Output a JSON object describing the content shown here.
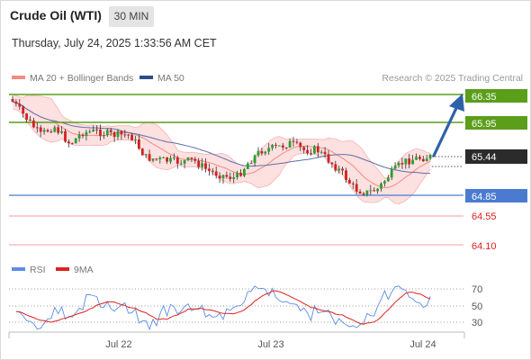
{
  "header": {
    "instrument": "Crude Oil (WTI)",
    "interval": "30 MIN",
    "timestamp": "Thursday, July 24, 2025 1:33:56 AM CET"
  },
  "legend": [
    {
      "label": "MA 20 + Bollinger Bands",
      "color": "#f28b82"
    },
    {
      "label": "MA 50",
      "color": "#2e4c8a"
    }
  ],
  "attribution": "Research © 2025 Trading Central",
  "rsi_legend": [
    {
      "label": "RSI",
      "color": "#5b8de6"
    },
    {
      "label": "9MA",
      "color": "#e02020"
    }
  ],
  "chart_data": {
    "type": "candlestick",
    "x_ticks": [
      "Jul 22",
      "Jul 23",
      "Jul 24"
    ],
    "price_ylim": [
      63.85,
      66.6
    ],
    "current_price": 65.44,
    "levels": [
      {
        "value": 66.35,
        "label": "66.35",
        "kind": "resistance",
        "color": "#5a9e1a"
      },
      {
        "value": 65.95,
        "label": "65.95",
        "kind": "resistance",
        "color": "#5a9e1a"
      },
      {
        "value": 64.85,
        "label": "64.85",
        "kind": "pivot",
        "color": "#4a7bd0"
      },
      {
        "value": 64.55,
        "label": "64.55",
        "kind": "support",
        "color": "#e86b6b"
      },
      {
        "value": 64.1,
        "label": "64.10",
        "kind": "support",
        "color": "#e86b6b"
      }
    ],
    "rsi": {
      "levels": [
        {
          "value": 70,
          "label": "70"
        },
        {
          "value": 50,
          "label": "50"
        },
        {
          "value": 30,
          "label": "30"
        }
      ],
      "ylim": [
        15,
        85
      ]
    }
  }
}
